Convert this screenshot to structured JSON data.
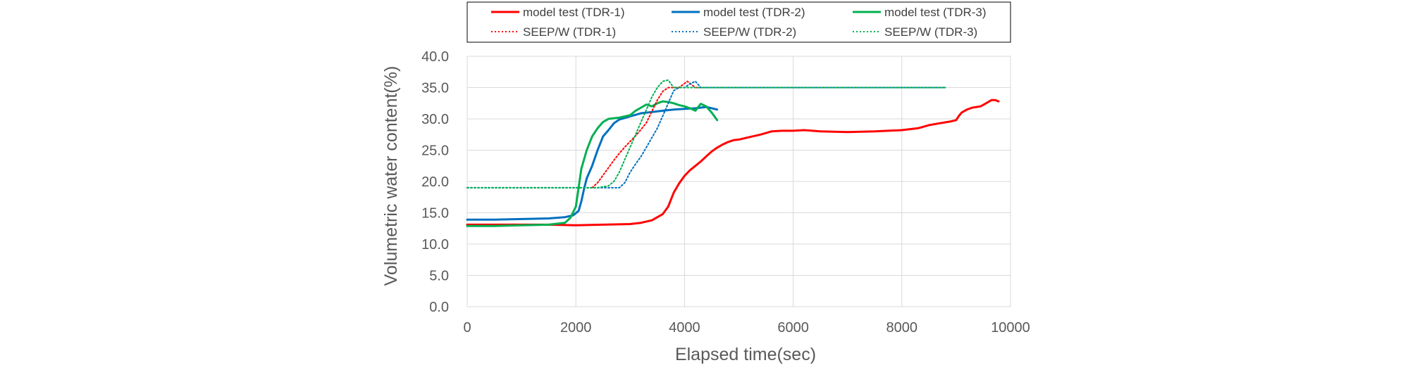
{
  "chart_data": {
    "type": "line",
    "xlabel": "Elapsed time(sec)",
    "ylabel": "Volumetric water content(%)",
    "xlim": [
      0,
      10000
    ],
    "ylim": [
      0,
      40
    ],
    "x_ticks": [
      "0",
      "2000",
      "4000",
      "6000",
      "8000",
      "10000"
    ],
    "y_ticks": [
      "0.0",
      "5.0",
      "10.0",
      "15.0",
      "20.0",
      "25.0",
      "30.0",
      "35.0",
      "40.0"
    ],
    "grid": true,
    "legend": {
      "position": "top",
      "columns": 3
    },
    "series": [
      {
        "name": "model test (TDR-1)",
        "color": "#ff0000",
        "dash": false,
        "points": [
          [
            0,
            13.1
          ],
          [
            500,
            13.1
          ],
          [
            1000,
            13.1
          ],
          [
            1500,
            13.1
          ],
          [
            2000,
            13.0
          ],
          [
            2500,
            13.1
          ],
          [
            3000,
            13.2
          ],
          [
            3200,
            13.4
          ],
          [
            3400,
            13.8
          ],
          [
            3600,
            14.8
          ],
          [
            3700,
            16.0
          ],
          [
            3800,
            18.2
          ],
          [
            3900,
            19.7
          ],
          [
            4000,
            20.9
          ],
          [
            4100,
            21.8
          ],
          [
            4200,
            22.5
          ],
          [
            4300,
            23.2
          ],
          [
            4400,
            24.0
          ],
          [
            4500,
            24.8
          ],
          [
            4600,
            25.4
          ],
          [
            4700,
            25.9
          ],
          [
            4800,
            26.3
          ],
          [
            4900,
            26.6
          ],
          [
            5000,
            26.7
          ],
          [
            5200,
            27.1
          ],
          [
            5400,
            27.5
          ],
          [
            5600,
            28.0
          ],
          [
            5800,
            28.1
          ],
          [
            6000,
            28.1
          ],
          [
            6200,
            28.2
          ],
          [
            6500,
            28.0
          ],
          [
            7000,
            27.9
          ],
          [
            7500,
            28.0
          ],
          [
            8000,
            28.2
          ],
          [
            8300,
            28.5
          ],
          [
            8500,
            29.0
          ],
          [
            8700,
            29.3
          ],
          [
            8900,
            29.6
          ],
          [
            9000,
            29.8
          ],
          [
            9050,
            30.5
          ],
          [
            9100,
            31.0
          ],
          [
            9200,
            31.5
          ],
          [
            9300,
            31.8
          ],
          [
            9450,
            32.0
          ],
          [
            9550,
            32.5
          ],
          [
            9650,
            33.0
          ],
          [
            9720,
            33.0
          ],
          [
            9780,
            32.8
          ]
        ]
      },
      {
        "name": "model test (TDR-2)",
        "color": "#0070c0",
        "dash": false,
        "points": [
          [
            0,
            13.9
          ],
          [
            500,
            13.9
          ],
          [
            1000,
            14.0
          ],
          [
            1500,
            14.1
          ],
          [
            1800,
            14.3
          ],
          [
            1950,
            14.6
          ],
          [
            2050,
            15.3
          ],
          [
            2100,
            16.8
          ],
          [
            2150,
            18.8
          ],
          [
            2200,
            20.5
          ],
          [
            2300,
            22.5
          ],
          [
            2400,
            25.0
          ],
          [
            2500,
            27.2
          ],
          [
            2600,
            28.2
          ],
          [
            2700,
            29.3
          ],
          [
            2800,
            29.9
          ],
          [
            3000,
            30.4
          ],
          [
            3200,
            30.9
          ],
          [
            3400,
            31.1
          ],
          [
            3600,
            31.3
          ],
          [
            3800,
            31.5
          ],
          [
            4000,
            31.6
          ],
          [
            4200,
            31.7
          ],
          [
            4400,
            31.9
          ],
          [
            4600,
            31.5
          ]
        ]
      },
      {
        "name": "model test (TDR-3)",
        "color": "#00b050",
        "dash": false,
        "points": [
          [
            0,
            12.9
          ],
          [
            500,
            12.9
          ],
          [
            1000,
            13.0
          ],
          [
            1500,
            13.1
          ],
          [
            1800,
            13.4
          ],
          [
            1900,
            14.2
          ],
          [
            2000,
            16.0
          ],
          [
            2050,
            19.0
          ],
          [
            2100,
            22.0
          ],
          [
            2200,
            25.0
          ],
          [
            2300,
            27.2
          ],
          [
            2400,
            28.5
          ],
          [
            2500,
            29.5
          ],
          [
            2600,
            30.0
          ],
          [
            2800,
            30.2
          ],
          [
            3000,
            30.6
          ],
          [
            3100,
            31.3
          ],
          [
            3200,
            31.8
          ],
          [
            3300,
            32.3
          ],
          [
            3400,
            32.0
          ],
          [
            3500,
            32.5
          ],
          [
            3600,
            32.8
          ],
          [
            3700,
            32.7
          ],
          [
            3800,
            32.5
          ],
          [
            3900,
            32.2
          ],
          [
            4000,
            32.0
          ],
          [
            4100,
            31.7
          ],
          [
            4200,
            31.3
          ],
          [
            4300,
            32.4
          ],
          [
            4400,
            32.0
          ],
          [
            4500,
            31.0
          ],
          [
            4600,
            29.8
          ]
        ]
      },
      {
        "name": "SEEP/W (TDR-1)",
        "color": "#ff0000",
        "dash": true,
        "points": [
          [
            2300,
            19.0
          ],
          [
            2400,
            19.8
          ],
          [
            2500,
            21.0
          ],
          [
            2600,
            22.2
          ],
          [
            2700,
            23.4
          ],
          [
            2800,
            24.5
          ],
          [
            2900,
            25.5
          ],
          [
            3000,
            26.4
          ],
          [
            3100,
            27.3
          ],
          [
            3200,
            28.3
          ],
          [
            3300,
            29.4
          ],
          [
            3400,
            31.2
          ],
          [
            3500,
            33.0
          ],
          [
            3600,
            34.4
          ],
          [
            3700,
            35.0
          ],
          [
            3900,
            35.0
          ],
          [
            4050,
            36.0
          ],
          [
            4200,
            35.0
          ],
          [
            5000,
            35.0
          ],
          [
            6000,
            35.0
          ],
          [
            7000,
            35.0
          ],
          [
            8000,
            35.0
          ],
          [
            8800,
            35.0
          ]
        ]
      },
      {
        "name": "SEEP/W (TDR-2)",
        "color": "#0070c0",
        "dash": true,
        "points": [
          [
            0,
            19.0
          ],
          [
            2800,
            19.0
          ],
          [
            2900,
            19.8
          ],
          [
            3000,
            21.5
          ],
          [
            3100,
            22.8
          ],
          [
            3200,
            24.0
          ],
          [
            3300,
            25.5
          ],
          [
            3400,
            27.0
          ],
          [
            3500,
            28.5
          ],
          [
            3600,
            30.5
          ],
          [
            3700,
            32.5
          ],
          [
            3800,
            34.5
          ],
          [
            3900,
            35.0
          ],
          [
            4000,
            35.0
          ],
          [
            4100,
            35.6
          ],
          [
            4200,
            36.0
          ],
          [
            4300,
            35.0
          ],
          [
            5000,
            35.0
          ],
          [
            6000,
            35.0
          ],
          [
            7000,
            35.0
          ],
          [
            8000,
            35.0
          ],
          [
            8800,
            35.0
          ]
        ]
      },
      {
        "name": "SEEP/W (TDR-3)",
        "color": "#00b050",
        "dash": true,
        "points": [
          [
            0,
            19.0
          ],
          [
            2000,
            19.0
          ],
          [
            2400,
            19.0
          ],
          [
            2600,
            19.3
          ],
          [
            2700,
            20.0
          ],
          [
            2800,
            21.5
          ],
          [
            2900,
            23.5
          ],
          [
            3000,
            25.5
          ],
          [
            3100,
            27.5
          ],
          [
            3200,
            29.5
          ],
          [
            3300,
            31.5
          ],
          [
            3400,
            33.5
          ],
          [
            3500,
            35.0
          ],
          [
            3600,
            36.0
          ],
          [
            3700,
            36.2
          ],
          [
            3800,
            35.0
          ],
          [
            4500,
            35.0
          ],
          [
            6000,
            35.0
          ],
          [
            7000,
            35.0
          ],
          [
            8000,
            35.0
          ],
          [
            8800,
            35.0
          ]
        ]
      }
    ]
  }
}
